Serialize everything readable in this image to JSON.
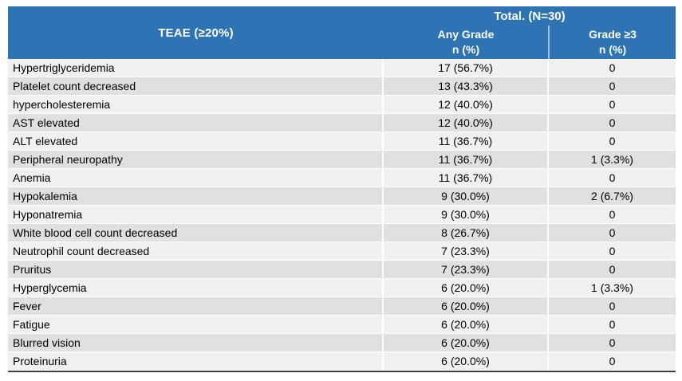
{
  "chart_data": {
    "type": "table",
    "header": {
      "teae_label": "TEAE (≥20%)",
      "total_label": "Total. (N=30)",
      "any_grade_line1": "Any Grade",
      "any_grade_line2": "n (%)",
      "grade3_line1": "Grade ≥3",
      "grade3_line2": "n (%)"
    },
    "columns": [
      "TEAE (≥20%)",
      "Any Grade n (%)",
      "Grade ≥3 n (%)"
    ],
    "rows": [
      {
        "teae": "Hypertriglyceridemia",
        "any_grade": "17 (56.7%)",
        "grade3": "0"
      },
      {
        "teae": "Platelet count decreased",
        "any_grade": "13 (43.3%)",
        "grade3": "0"
      },
      {
        "teae": "hypercholesteremia",
        "any_grade": "12 (40.0%)",
        "grade3": "0"
      },
      {
        "teae": "AST elevated",
        "any_grade": "12 (40.0%)",
        "grade3": "0"
      },
      {
        "teae": "ALT elevated",
        "any_grade": "11 (36.7%)",
        "grade3": "0"
      },
      {
        "teae": "Peripheral neuropathy",
        "any_grade": "11 (36.7%)",
        "grade3": "1 (3.3%)"
      },
      {
        "teae": "Anemia",
        "any_grade": "11 (36.7%)",
        "grade3": "0"
      },
      {
        "teae": "Hypokalemia",
        "any_grade": "9 (30.0%)",
        "grade3": "2 (6.7%)"
      },
      {
        "teae": "Hyponatremia",
        "any_grade": "9 (30.0%)",
        "grade3": "0"
      },
      {
        "teae": "White blood cell count decreased",
        "any_grade": "8 (26.7%)",
        "grade3": "0"
      },
      {
        "teae": "Neutrophil count decreased",
        "any_grade": "7 (23.3%)",
        "grade3": "0"
      },
      {
        "teae": "Pruritus",
        "any_grade": "7 (23.3%)",
        "grade3": "0"
      },
      {
        "teae": "Hyperglycemia",
        "any_grade": "6 (20.0%)",
        "grade3": "1 (3.3%)"
      },
      {
        "teae": "Fever",
        "any_grade": "6 (20.0%)",
        "grade3": "0"
      },
      {
        "teae": "Fatigue",
        "any_grade": "6 (20.0%)",
        "grade3": "0"
      },
      {
        "teae": "Blurred vision",
        "any_grade": "6 (20.0%)",
        "grade3": "0"
      },
      {
        "teae": "Proteinuria",
        "any_grade": "6 (20.0%)",
        "grade3": "0"
      }
    ]
  },
  "colors": {
    "header_bg": "#2E74B5",
    "header_text": "#FFFFFF",
    "row_light": "#F0F0F0",
    "row_dark": "#E0E0E0",
    "row_separator": "#FFFFFF",
    "bottom_border": "#3F3F3F",
    "body_text": "#000000"
  }
}
